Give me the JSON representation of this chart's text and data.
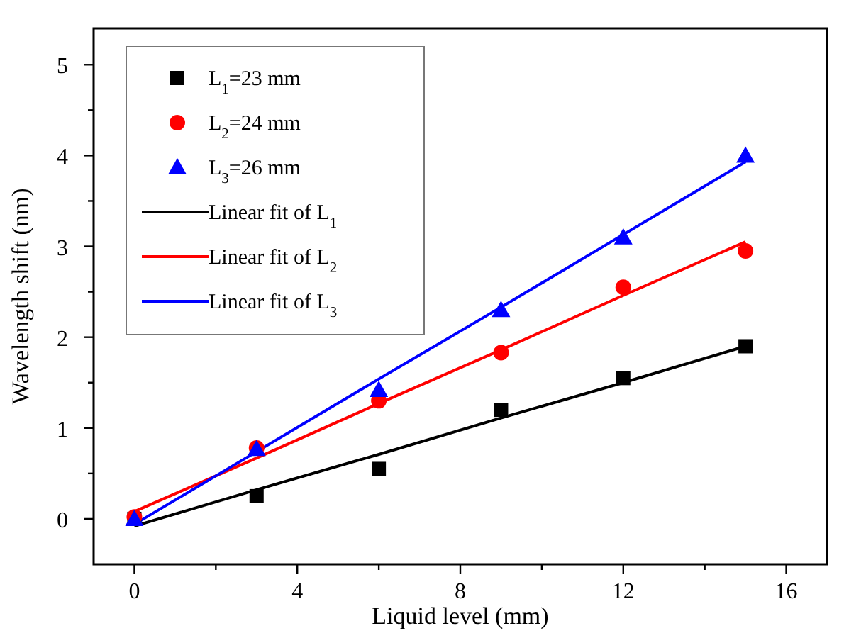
{
  "chart_data": {
    "type": "scatter",
    "xlabel": "Liquid level (mm)",
    "ylabel": "Wavelength shift (nm)",
    "xlim": [
      -1,
      17
    ],
    "xticks": [
      0,
      {
        "value": 2,
        "label": null
      },
      4,
      {
        "value": 6,
        "label": null
      },
      8,
      {
        "value": 10,
        "label": null
      },
      12,
      {
        "value": 14,
        "label": null
      },
      16
    ],
    "ylim": [
      -0.5,
      5.4
    ],
    "yticks": [
      0,
      {
        "value": 0.5,
        "label": null
      },
      1,
      {
        "value": 1.5,
        "label": null
      },
      2,
      {
        "value": 2.5,
        "label": null
      },
      3,
      {
        "value": 3.5,
        "label": null
      },
      4,
      {
        "value": 4.5,
        "label": null
      },
      5
    ],
    "legend": "top left",
    "grid": false,
    "x": [
      0,
      3,
      6,
      9,
      12,
      15
    ],
    "series": [
      {
        "name": "L$_{1}$=23 mm",
        "marker": "square",
        "color": "#000000",
        "values": [
          0,
          0.25,
          0.55,
          1.2,
          1.55,
          1.9
        ]
      },
      {
        "name": "L$_{2}$=24 mm",
        "marker": "circle",
        "color": "#ff0000",
        "values": [
          0.02,
          0.78,
          1.3,
          1.83,
          2.55,
          2.95
        ]
      },
      {
        "name": "L$_{3}$=26 mm",
        "marker": "triangle",
        "color": "#0000ff",
        "values": [
          0,
          0.77,
          1.42,
          2.3,
          3.1,
          4.0
        ]
      },
      {
        "name": "Linear fit of L$_{1}$",
        "type": "line",
        "line_style": "solid",
        "color": "#000000",
        "values": [
          -0.08,
          0.32,
          0.71,
          1.11,
          1.5,
          1.9
        ]
      },
      {
        "name": "Linear fit of L$_{2}$",
        "type": "line",
        "line_style": "solid",
        "color": "#ff0000",
        "values": [
          0.08,
          0.67,
          1.27,
          1.86,
          2.46,
          3.05
        ]
      },
      {
        "name": "Linear fit of L$_{3}$",
        "type": "line",
        "line_style": "solid",
        "color": "#0000ff",
        "values": [
          -0.06,
          0.74,
          1.54,
          2.33,
          3.13,
          3.93
        ]
      }
    ]
  }
}
